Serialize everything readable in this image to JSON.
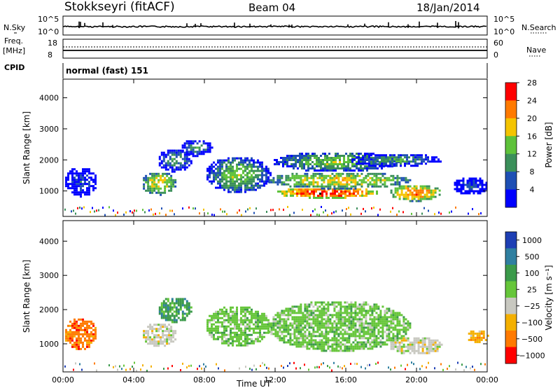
{
  "header": {
    "station": "Stokkseyri (fitACF)",
    "beam": "Beam 04",
    "date": "18/Jan/2014"
  },
  "noise_panel": {
    "left_label": "N.Sky",
    "right_label": "N.Search",
    "ticks_left": [
      "10^5",
      "10^0"
    ],
    "ticks_right": [
      "10^5",
      "10^0"
    ]
  },
  "freq_panel": {
    "left_label_1": "Freq.",
    "left_label_2": "[MHz]",
    "right_label": "Nave",
    "ticks_left": [
      "18",
      "8"
    ],
    "ticks_right": [
      "60",
      "0"
    ]
  },
  "cpid": {
    "label": "CPID",
    "mode": "normal (fast) 151"
  },
  "chart_data": [
    {
      "type": "heatmap",
      "panel": "power",
      "ylabel": "Slant Range [km]",
      "ylim": [
        180,
        4600
      ],
      "yticks": [
        "1000",
        "2000",
        "3000",
        "4000"
      ],
      "xlabel": "",
      "xlim": [
        0,
        24
      ],
      "colorbar": {
        "label": "Power [dB]",
        "ticks": [
          "4",
          "8",
          "12",
          "16",
          "20",
          "24",
          "28"
        ],
        "colors": [
          "#0000ff",
          "#1e4fb4",
          "#3b8f5a",
          "#5ec23a",
          "#f4c400",
          "#ff7a00",
          "#ff0000"
        ]
      },
      "regions": [
        {
          "t0": 0.0,
          "t1": 1.9,
          "r0": 850,
          "r1": 1800,
          "level": 2
        },
        {
          "t0": 4.4,
          "t1": 6.4,
          "r0": 900,
          "r1": 1650,
          "level": 5
        },
        {
          "t0": 5.3,
          "t1": 7.3,
          "r0": 1650,
          "r1": 2400,
          "level": 3
        },
        {
          "t0": 6.6,
          "t1": 8.4,
          "r0": 2150,
          "r1": 2700,
          "level": 3
        },
        {
          "t0": 8.0,
          "t1": 11.7,
          "r0": 950,
          "r1": 2150,
          "level": 4
        },
        {
          "t0": 12.0,
          "t1": 17.8,
          "r0": 800,
          "r1": 1150,
          "level": 7
        },
        {
          "t0": 11.5,
          "t1": 19.6,
          "r0": 1100,
          "r1": 1650,
          "level": 5
        },
        {
          "t0": 11.8,
          "t1": 19.0,
          "r0": 1650,
          "r1": 2300,
          "level": 4
        },
        {
          "t0": 18.4,
          "t1": 21.4,
          "r0": 700,
          "r1": 1250,
          "level": 6
        },
        {
          "t0": 16.2,
          "t1": 21.4,
          "r0": 1800,
          "r1": 2250,
          "level": 3
        },
        {
          "t0": 22.0,
          "t1": 24.0,
          "r0": 900,
          "r1": 1500,
          "level": 2
        }
      ]
    },
    {
      "type": "heatmap",
      "panel": "velocity",
      "ylabel": "Slant Range [km]",
      "ylim": [
        180,
        4600
      ],
      "yticks": [
        "1000",
        "2000",
        "3000",
        "4000"
      ],
      "xlabel": "Time UT",
      "xticks": [
        "00:00",
        "04:00",
        "08:00",
        "12:00",
        "16:00",
        "20:00",
        "00:00"
      ],
      "xlim": [
        0,
        24
      ],
      "colorbar": {
        "label": "Velocity [m s⁻¹]",
        "ticks": [
          "1000",
          "500",
          "100",
          "25",
          "−25",
          "−100",
          "−500",
          "−1000"
        ],
        "colors": [
          "#1e3fb4",
          "#2f7fa0",
          "#3b9a4a",
          "#66c63a",
          "#c8c8c0",
          "#f4b000",
          "#ff7a00",
          "#ff0000"
        ]
      },
      "regions": [
        {
          "t0": 0.0,
          "t1": 1.9,
          "r0": 850,
          "r1": 1800,
          "level": 7
        },
        {
          "t0": 4.4,
          "t1": 6.4,
          "r0": 950,
          "r1": 1650,
          "level": 5
        },
        {
          "t0": 5.3,
          "t1": 7.3,
          "r0": 1650,
          "r1": 2400,
          "level": 3
        },
        {
          "t0": 8.0,
          "t1": 11.7,
          "r0": 950,
          "r1": 2150,
          "level": 4
        },
        {
          "t0": 11.5,
          "t1": 19.6,
          "r0": 800,
          "r1": 2300,
          "level": 4
        },
        {
          "t0": 18.4,
          "t1": 21.4,
          "r0": 700,
          "r1": 1250,
          "level": 5
        },
        {
          "t0": 22.8,
          "t1": 24.0,
          "r0": 1050,
          "r1": 1450,
          "level": 6
        }
      ]
    }
  ]
}
